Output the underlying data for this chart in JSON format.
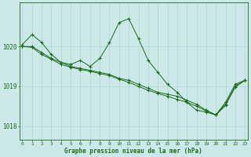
{
  "title": "Graphe pression niveau de la mer (hPa)",
  "background_color": "#cce8e8",
  "grid_color": "#aed4d4",
  "line_color": "#1a6b1a",
  "line1": {
    "x": [
      0,
      1,
      2,
      3,
      4,
      5,
      6,
      7,
      8,
      9,
      10,
      11,
      12,
      13,
      14,
      15,
      16,
      17,
      18,
      19,
      20,
      21,
      22,
      23
    ],
    "y": [
      1020.05,
      1020.3,
      1020.1,
      1019.8,
      1019.6,
      1019.55,
      1019.65,
      1019.5,
      1019.7,
      1020.1,
      1020.6,
      1020.7,
      1020.2,
      1019.65,
      1019.35,
      1019.05,
      1018.85,
      1018.6,
      1018.4,
      1018.35,
      1018.28,
      1018.6,
      1019.05,
      1019.15
    ]
  },
  "line2": {
    "x": [
      0,
      1,
      2,
      3,
      4,
      5,
      6,
      7,
      8,
      9,
      10,
      11,
      12,
      13,
      14,
      15,
      16,
      17,
      18,
      19,
      20,
      21,
      22,
      23
    ],
    "y": [
      1020.0,
      1020.0,
      1019.85,
      1019.7,
      1019.6,
      1019.5,
      1019.45,
      1019.4,
      1019.35,
      1019.3,
      1019.2,
      1019.15,
      1019.05,
      1018.95,
      1018.85,
      1018.8,
      1018.75,
      1018.65,
      1018.55,
      1018.4,
      1018.28,
      1018.55,
      1019.0,
      1019.15
    ]
  },
  "line3": {
    "x": [
      0,
      1,
      2,
      3,
      4,
      5,
      6,
      7,
      8,
      9,
      10,
      11,
      12,
      13,
      14,
      15,
      16,
      17,
      18,
      19,
      20,
      21,
      22,
      23
    ],
    "y": [
      1020.0,
      1019.98,
      1019.8,
      1019.68,
      1019.55,
      1019.48,
      1019.42,
      1019.38,
      1019.32,
      1019.27,
      1019.18,
      1019.1,
      1019.0,
      1018.9,
      1018.82,
      1018.75,
      1018.67,
      1018.6,
      1018.5,
      1018.38,
      1018.28,
      1018.52,
      1018.98,
      1019.15
    ]
  },
  "ylim": [
    1017.65,
    1021.1
  ],
  "yticks": [
    1018,
    1019,
    1020
  ],
  "xticks": [
    0,
    1,
    2,
    3,
    4,
    5,
    6,
    7,
    8,
    9,
    10,
    11,
    12,
    13,
    14,
    15,
    16,
    17,
    18,
    19,
    20,
    21,
    22,
    23
  ],
  "figsize": [
    3.2,
    2.0
  ],
  "dpi": 100
}
